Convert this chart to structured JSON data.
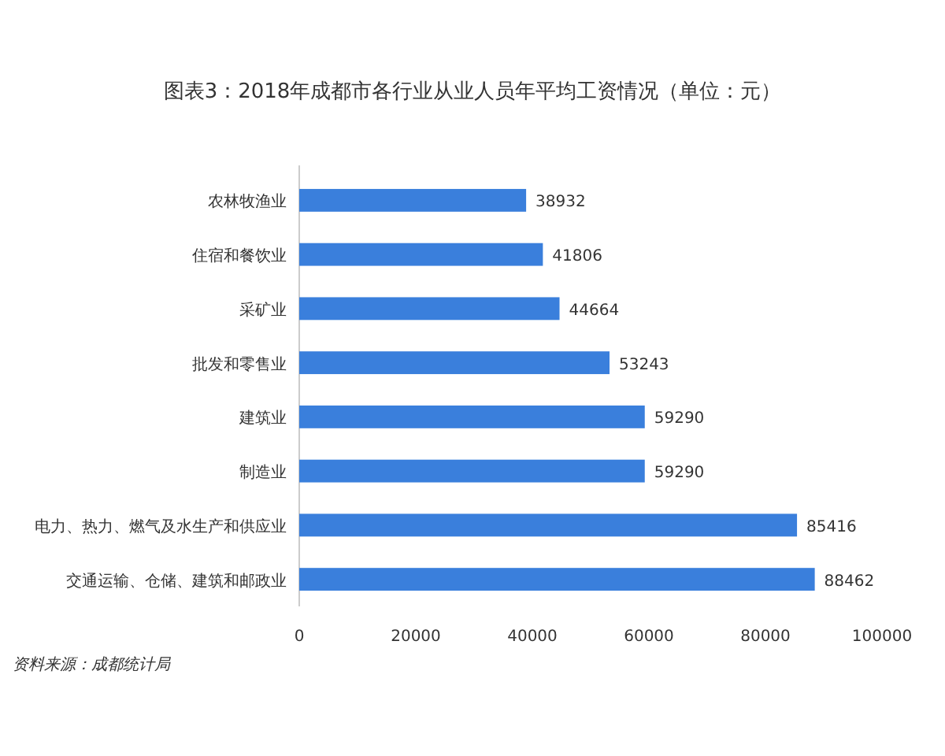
{
  "chart_data": {
    "type": "bar",
    "orientation": "horizontal",
    "title": "图表3：2018年成都市各行业从业人员年平均工资情况（单位：元）",
    "categories": [
      "农林牧渔业",
      "住宿和餐饮业",
      "采矿业",
      "批发和零售业",
      "建筑业",
      "制造业",
      "电力、热力、燃气及水生产和供应业",
      "交通运输、仓储、建筑和邮政业"
    ],
    "values": [
      38932,
      41806,
      44664,
      53243,
      59290,
      59290,
      85416,
      88462
    ],
    "color": "#3a7fdc",
    "xlim": [
      0,
      100000
    ],
    "xticks": [
      0,
      20000,
      40000,
      60000,
      80000,
      100000
    ],
    "data_labels": true,
    "grid": false,
    "annotations": [
      "资料来源：成都统计局"
    ]
  }
}
